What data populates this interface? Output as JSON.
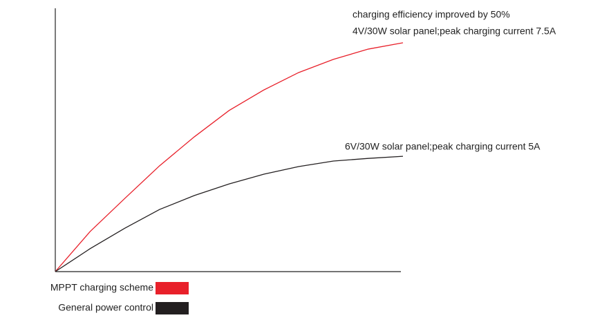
{
  "chart_data": {
    "type": "line",
    "annotations": [
      "charging efficiency improved by 50%",
      "4V/30W solar panel;peak charging current 7.5A",
      "6V/30W solar panel;peak charging current 5A"
    ],
    "x": [
      0,
      10,
      20,
      30,
      40,
      50,
      60,
      70,
      80,
      90,
      100
    ],
    "series": [
      {
        "name": "MPPT charging scheme",
        "color": "#e8202a",
        "values": [
          0,
          15.2,
          27.8,
          40.2,
          51.2,
          61.2,
          69,
          75.6,
          80.6,
          84.5,
          86.9
        ]
      },
      {
        "name": "General power control",
        "color": "#231f20",
        "values": [
          0,
          8.7,
          16.5,
          23.6,
          28.9,
          33.3,
          37,
          39.9,
          42,
          43,
          43.8
        ]
      }
    ],
    "xlim": [
      0,
      100
    ],
    "ylim": [
      0,
      100
    ]
  }
}
